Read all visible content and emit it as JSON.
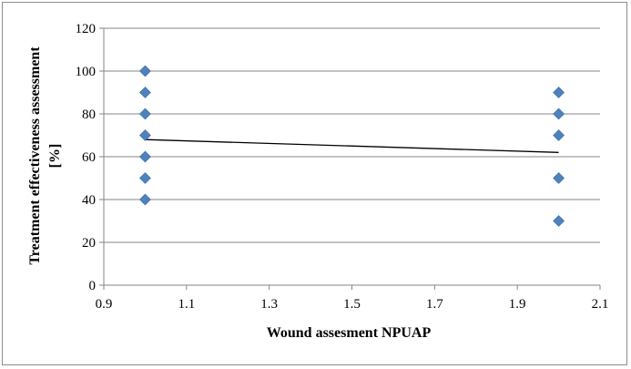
{
  "chart_data": {
    "type": "scatter",
    "title": "",
    "xlabel": "Wound assesment NPUAP",
    "ylabel_line1": "Treatment effectiveness assessment",
    "ylabel_line2": "[%]",
    "xlim": [
      0.9,
      2.1
    ],
    "ylim": [
      0,
      120
    ],
    "x_ticks": [
      "0.9",
      "1.1",
      "1.3",
      "1.5",
      "1.7",
      "1.9",
      "2.1"
    ],
    "x_tick_values": [
      0.9,
      1.1,
      1.3,
      1.5,
      1.7,
      1.9,
      2.1
    ],
    "y_ticks": [
      "0",
      "20",
      "40",
      "60",
      "80",
      "100",
      "120"
    ],
    "y_tick_values": [
      0,
      20,
      40,
      60,
      80,
      100,
      120
    ],
    "grid": "horizontal",
    "legend": "none",
    "points": [
      {
        "x": 1,
        "y": 100
      },
      {
        "x": 1,
        "y": 90
      },
      {
        "x": 1,
        "y": 80
      },
      {
        "x": 1,
        "y": 70
      },
      {
        "x": 1,
        "y": 60
      },
      {
        "x": 1,
        "y": 50
      },
      {
        "x": 1,
        "y": 40
      },
      {
        "x": 2,
        "y": 90
      },
      {
        "x": 2,
        "y": 80
      },
      {
        "x": 2,
        "y": 70
      },
      {
        "x": 2,
        "y": 50
      },
      {
        "x": 2,
        "y": 30
      }
    ],
    "trendline": [
      {
        "x": 1,
        "y": 68
      },
      {
        "x": 2,
        "y": 62
      }
    ],
    "colors": {
      "marker": "#4f81bd",
      "grid": "#868686",
      "trendline": "#000000"
    }
  }
}
